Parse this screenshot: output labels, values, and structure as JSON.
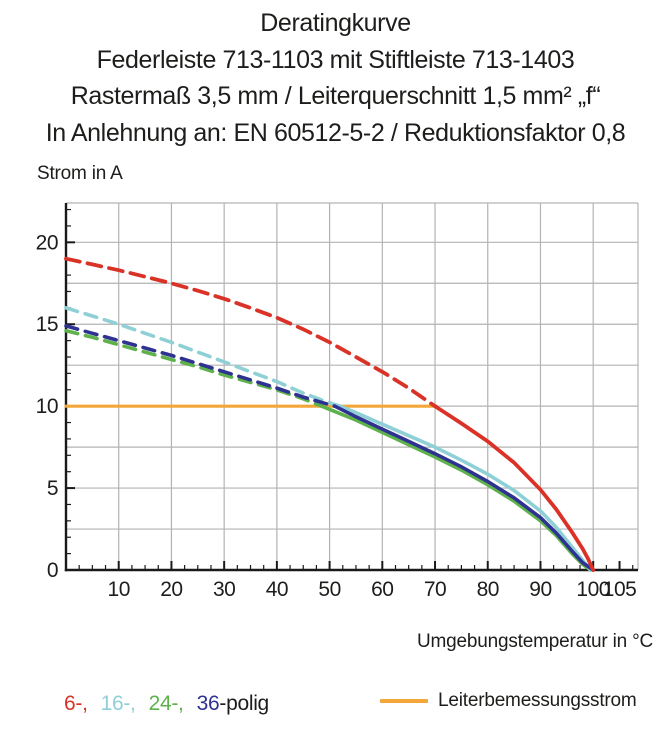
{
  "title": {
    "line1": "Deratingkurve",
    "line2": "Federleiste 713-1103 mit Stiftleiste 713-1403",
    "line3": "Rastermaß 3,5 mm / Leiterquerschnitt 1,5 mm² „f“",
    "line4": "In Anlehnung an: EN 60512-5-2 / Reduktionsfaktor 0,8"
  },
  "axes": {
    "y_title": "Strom in A",
    "x_title": "Umgebungstemperatur in °C"
  },
  "legend": {
    "poly_items": [
      {
        "label": "6-,",
        "color": "#da3227"
      },
      {
        "label": "16-,",
        "color": "#8fd0d6"
      },
      {
        "label": "24-,",
        "color": "#5fb14c"
      },
      {
        "label": "36",
        "color": "#2e3391"
      }
    ],
    "suffix": "-polig",
    "rated_label": "Leiterbemessungsstrom",
    "rated_color": "#f3a73a"
  },
  "chart_data": {
    "type": "line",
    "title": "Deratingkurve",
    "xlabel": "Umgebungstemperatur in °C",
    "ylabel": "Strom in A",
    "xlim": [
      0,
      108.5
    ],
    "ylim": [
      0,
      22.4
    ],
    "x_tick_labels": [
      10,
      20,
      30,
      40,
      50,
      60,
      70,
      80,
      90,
      100,
      105
    ],
    "y_tick_labels": [
      0,
      5,
      10,
      15,
      20
    ],
    "x_minor_step": 2.5,
    "y_minor_step": 1,
    "grid": {
      "x_interval": 10,
      "y_interval": 2.5,
      "color": "#b3b3b3",
      "on": true
    },
    "axis_color": "#1a1a1a",
    "legend_position": "bottom",
    "series": [
      {
        "name": "Leiterbemessungsstrom",
        "color": "#f3a73a",
        "width": 3.2,
        "solid_points": [
          [
            0,
            10
          ],
          [
            70.3,
            10
          ]
        ]
      },
      {
        "name": "24-polig",
        "color": "#5fb14c",
        "width": 3.6,
        "dash": "12 8",
        "dashed_points": [
          [
            0,
            14.6
          ],
          [
            5,
            14.2
          ],
          [
            10,
            13.75
          ],
          [
            15,
            13.3
          ],
          [
            20,
            12.85
          ],
          [
            25,
            12.4
          ],
          [
            30,
            11.9
          ],
          [
            35,
            11.45
          ],
          [
            40,
            11.0
          ],
          [
            45,
            10.45
          ],
          [
            48.5,
            10.0
          ]
        ],
        "solid_points": [
          [
            48.5,
            10.0
          ],
          [
            55,
            9.15
          ],
          [
            60,
            8.4
          ],
          [
            65,
            7.65
          ],
          [
            70,
            6.9
          ],
          [
            75,
            6.1
          ],
          [
            80,
            5.2
          ],
          [
            85,
            4.2
          ],
          [
            90,
            3.0
          ],
          [
            93,
            2.1
          ],
          [
            96,
            1.0
          ],
          [
            98,
            0.35
          ],
          [
            99.5,
            0
          ]
        ]
      },
      {
        "name": "16-polig",
        "color": "#8fd0d6",
        "width": 3.6,
        "dash": "12 8",
        "dashed_points": [
          [
            0,
            16
          ],
          [
            5,
            15.5
          ],
          [
            10,
            15.0
          ],
          [
            15,
            14.45
          ],
          [
            20,
            13.9
          ],
          [
            25,
            13.3
          ],
          [
            30,
            12.7
          ],
          [
            35,
            12.1
          ],
          [
            40,
            11.5
          ],
          [
            45,
            10.8
          ],
          [
            50,
            10.2
          ],
          [
            52,
            10.0
          ]
        ],
        "solid_points": [
          [
            52,
            10.0
          ],
          [
            55,
            9.6
          ],
          [
            60,
            8.9
          ],
          [
            65,
            8.2
          ],
          [
            70,
            7.5
          ],
          [
            75,
            6.7
          ],
          [
            80,
            5.85
          ],
          [
            85,
            4.85
          ],
          [
            90,
            3.6
          ],
          [
            93,
            2.6
          ],
          [
            96,
            1.4
          ],
          [
            98,
            0.6
          ],
          [
            99.5,
            0
          ]
        ]
      },
      {
        "name": "36-polig",
        "color": "#2e3391",
        "width": 3.6,
        "dash": "12 8",
        "dashed_points": [
          [
            0,
            14.9
          ],
          [
            5,
            14.45
          ],
          [
            10,
            14.0
          ],
          [
            15,
            13.55
          ],
          [
            20,
            13.1
          ],
          [
            25,
            12.6
          ],
          [
            30,
            12.1
          ],
          [
            35,
            11.6
          ],
          [
            40,
            11.1
          ],
          [
            45,
            10.55
          ],
          [
            51,
            10.0
          ]
        ],
        "solid_points": [
          [
            51,
            10.0
          ],
          [
            55,
            9.35
          ],
          [
            60,
            8.6
          ],
          [
            65,
            7.85
          ],
          [
            70,
            7.1
          ],
          [
            75,
            6.3
          ],
          [
            80,
            5.4
          ],
          [
            85,
            4.4
          ],
          [
            90,
            3.2
          ],
          [
            93,
            2.25
          ],
          [
            96,
            1.15
          ],
          [
            98,
            0.45
          ],
          [
            100,
            0
          ]
        ]
      },
      {
        "name": "6-polig",
        "color": "#da3227",
        "width": 3.8,
        "dash": "14 8",
        "dashed_points": [
          [
            0,
            19
          ],
          [
            5,
            18.65
          ],
          [
            10,
            18.3
          ],
          [
            15,
            17.9
          ],
          [
            20,
            17.5
          ],
          [
            25,
            17.05
          ],
          [
            30,
            16.55
          ],
          [
            35,
            16.0
          ],
          [
            40,
            15.4
          ],
          [
            45,
            14.7
          ],
          [
            50,
            13.9
          ],
          [
            55,
            13.0
          ],
          [
            60,
            12.1
          ],
          [
            65,
            11.1
          ],
          [
            70,
            10.0
          ]
        ],
        "solid_points": [
          [
            70,
            10.0
          ],
          [
            75,
            8.95
          ],
          [
            80,
            7.85
          ],
          [
            85,
            6.55
          ],
          [
            90,
            4.9
          ],
          [
            93,
            3.7
          ],
          [
            96,
            2.3
          ],
          [
            98,
            1.3
          ],
          [
            99,
            0.7
          ],
          [
            100,
            0
          ]
        ]
      }
    ]
  }
}
